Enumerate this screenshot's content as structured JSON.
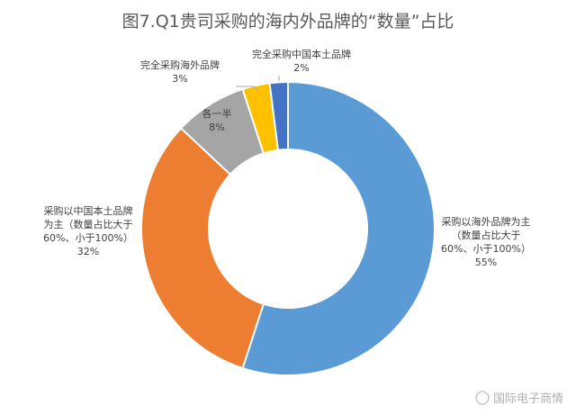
{
  "chart_data": {
    "type": "pie",
    "variant": "donut",
    "title": "图7.Q1贵司采购的海内外品牌的“数量”占比",
    "slices": [
      {
        "name_lines": [
          "采购以海外品牌为主",
          "（数量占比大于",
          "60%、小于100%）"
        ],
        "value": 55,
        "label": "55%",
        "color": "#5b9bd5"
      },
      {
        "name_lines": [
          "采购以中国本土品牌",
          "为主（数量占比大于",
          "60%、小于100%）"
        ],
        "value": 32,
        "label": "32%",
        "color": "#ed7d31"
      },
      {
        "name_lines": [
          "各一半"
        ],
        "value": 8,
        "label": "8%",
        "color": "#a5a5a5"
      },
      {
        "name_lines": [
          "完全采购海外品牌"
        ],
        "value": 3,
        "label": "3%",
        "color": "#ffc000"
      },
      {
        "name_lines": [
          "完全采购中国本土品牌"
        ],
        "value": 2,
        "label": "2%",
        "color": "#4472c4"
      }
    ]
  },
  "watermark": "国际电子商情"
}
